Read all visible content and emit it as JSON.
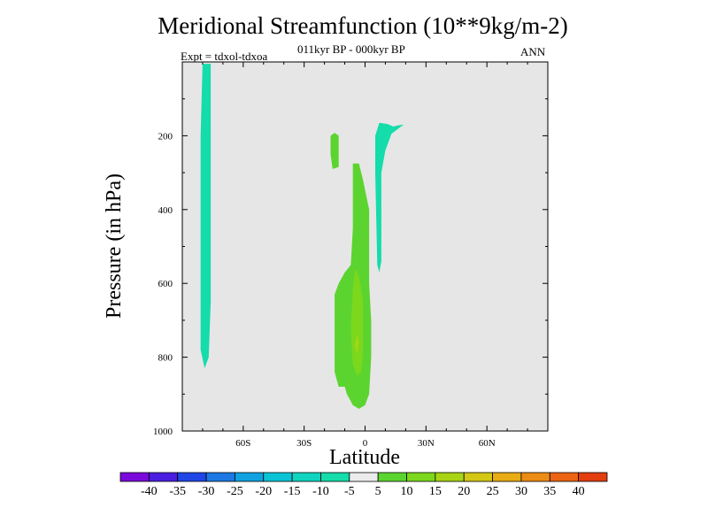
{
  "chart_data": {
    "type": "heatmap",
    "title": "Meridional Streamfunction (10**9kg/m-2)",
    "subtitle": "011kyr BP - 000kyr BP",
    "left_note": "Expt = tdxol-tdxoa",
    "right_note": "ANN",
    "xlabel": "Latitude",
    "ylabel": "Pressure (in hPa)",
    "x_range": [
      -90,
      90
    ],
    "y_range": [
      0,
      1000
    ],
    "y_axis_inverted": true,
    "x_ticks": [
      {
        "value": -60,
        "label": "60S"
      },
      {
        "value": -30,
        "label": "30S"
      },
      {
        "value": 0,
        "label": "0"
      },
      {
        "value": 30,
        "label": "30N"
      },
      {
        "value": 60,
        "label": "60N"
      }
    ],
    "y_ticks": [
      {
        "value": 200,
        "label": "200"
      },
      {
        "value": 400,
        "label": "400"
      },
      {
        "value": 600,
        "label": "600"
      },
      {
        "value": 800,
        "label": "800"
      },
      {
        "value": 1000,
        "label": "1000"
      }
    ],
    "background_color": "#e6e6e6",
    "colorbar": {
      "labels": [
        "-40",
        "-35",
        "-30",
        "-25",
        "-20",
        "-15",
        "-10",
        "-5",
        "5",
        "10",
        "15",
        "20",
        "25",
        "30",
        "35",
        "40"
      ],
      "colors": [
        "#7a0adc",
        "#4a1ee0",
        "#2046e6",
        "#1c78e2",
        "#10a2e0",
        "#0ac4d6",
        "#10d4c0",
        "#14dcaa",
        "#ececec",
        "#5cd430",
        "#7cd81c",
        "#a8d414",
        "#d4c814",
        "#e8ac14",
        "#ec8c14",
        "#ec6414",
        "#e43e10"
      ]
    },
    "regions": [
      {
        "level": "-10 to -5",
        "color": "#14dcaa",
        "points": [
          [
            -80,
            5
          ],
          [
            -76,
            5
          ],
          [
            -76,
            650
          ],
          [
            -77,
            800
          ],
          [
            -79,
            830
          ],
          [
            -81,
            780
          ],
          [
            -81,
            600
          ],
          [
            -81,
            200
          ]
        ]
      },
      {
        "level": "-10 to -5",
        "color": "#14dcaa",
        "points": [
          [
            7,
            165
          ],
          [
            11,
            168
          ],
          [
            14,
            175
          ],
          [
            16,
            172
          ],
          [
            19,
            170
          ],
          [
            17,
            178
          ],
          [
            13,
            195
          ],
          [
            10,
            240
          ],
          [
            8,
            300
          ],
          [
            8,
            540
          ],
          [
            7,
            570
          ],
          [
            6,
            550
          ],
          [
            5,
            300
          ],
          [
            5,
            200
          ]
        ]
      },
      {
        "level": "5 to 10",
        "color": "#5cd430",
        "points": [
          [
            -17,
            200
          ],
          [
            -15,
            192
          ],
          [
            -13,
            200
          ],
          [
            -13,
            285
          ],
          [
            -16,
            290
          ],
          [
            -17,
            250
          ]
        ]
      },
      {
        "level": "5 to 10",
        "color": "#5cd430",
        "points": [
          [
            -6,
            275
          ],
          [
            -3,
            275
          ],
          [
            -1,
            320
          ],
          [
            2,
            400
          ],
          [
            2,
            600
          ],
          [
            3,
            700
          ],
          [
            3,
            800
          ],
          [
            2,
            900
          ],
          [
            0,
            930
          ],
          [
            -3,
            940
          ],
          [
            -6,
            930
          ],
          [
            -9,
            900
          ],
          [
            -10,
            880
          ],
          [
            -13,
            880
          ],
          [
            -15,
            840
          ],
          [
            -15,
            700
          ],
          [
            -15,
            630
          ],
          [
            -13,
            600
          ],
          [
            -10,
            570
          ],
          [
            -7,
            550
          ],
          [
            -6,
            450
          ]
        ]
      },
      {
        "level": "10 to 15",
        "color": "#7cd81c",
        "points": [
          [
            -5,
            560
          ],
          [
            -3,
            580
          ],
          [
            -1,
            650
          ],
          [
            -1,
            780
          ],
          [
            -2,
            840
          ],
          [
            -4,
            850
          ],
          [
            -6,
            820
          ],
          [
            -7,
            720
          ],
          [
            -6,
            620
          ]
        ]
      },
      {
        "level": "15 to 20",
        "color": "#a8d414",
        "points": [
          [
            -4,
            740
          ],
          [
            -3,
            760
          ],
          [
            -4,
            790
          ],
          [
            -5,
            770
          ]
        ]
      }
    ]
  }
}
